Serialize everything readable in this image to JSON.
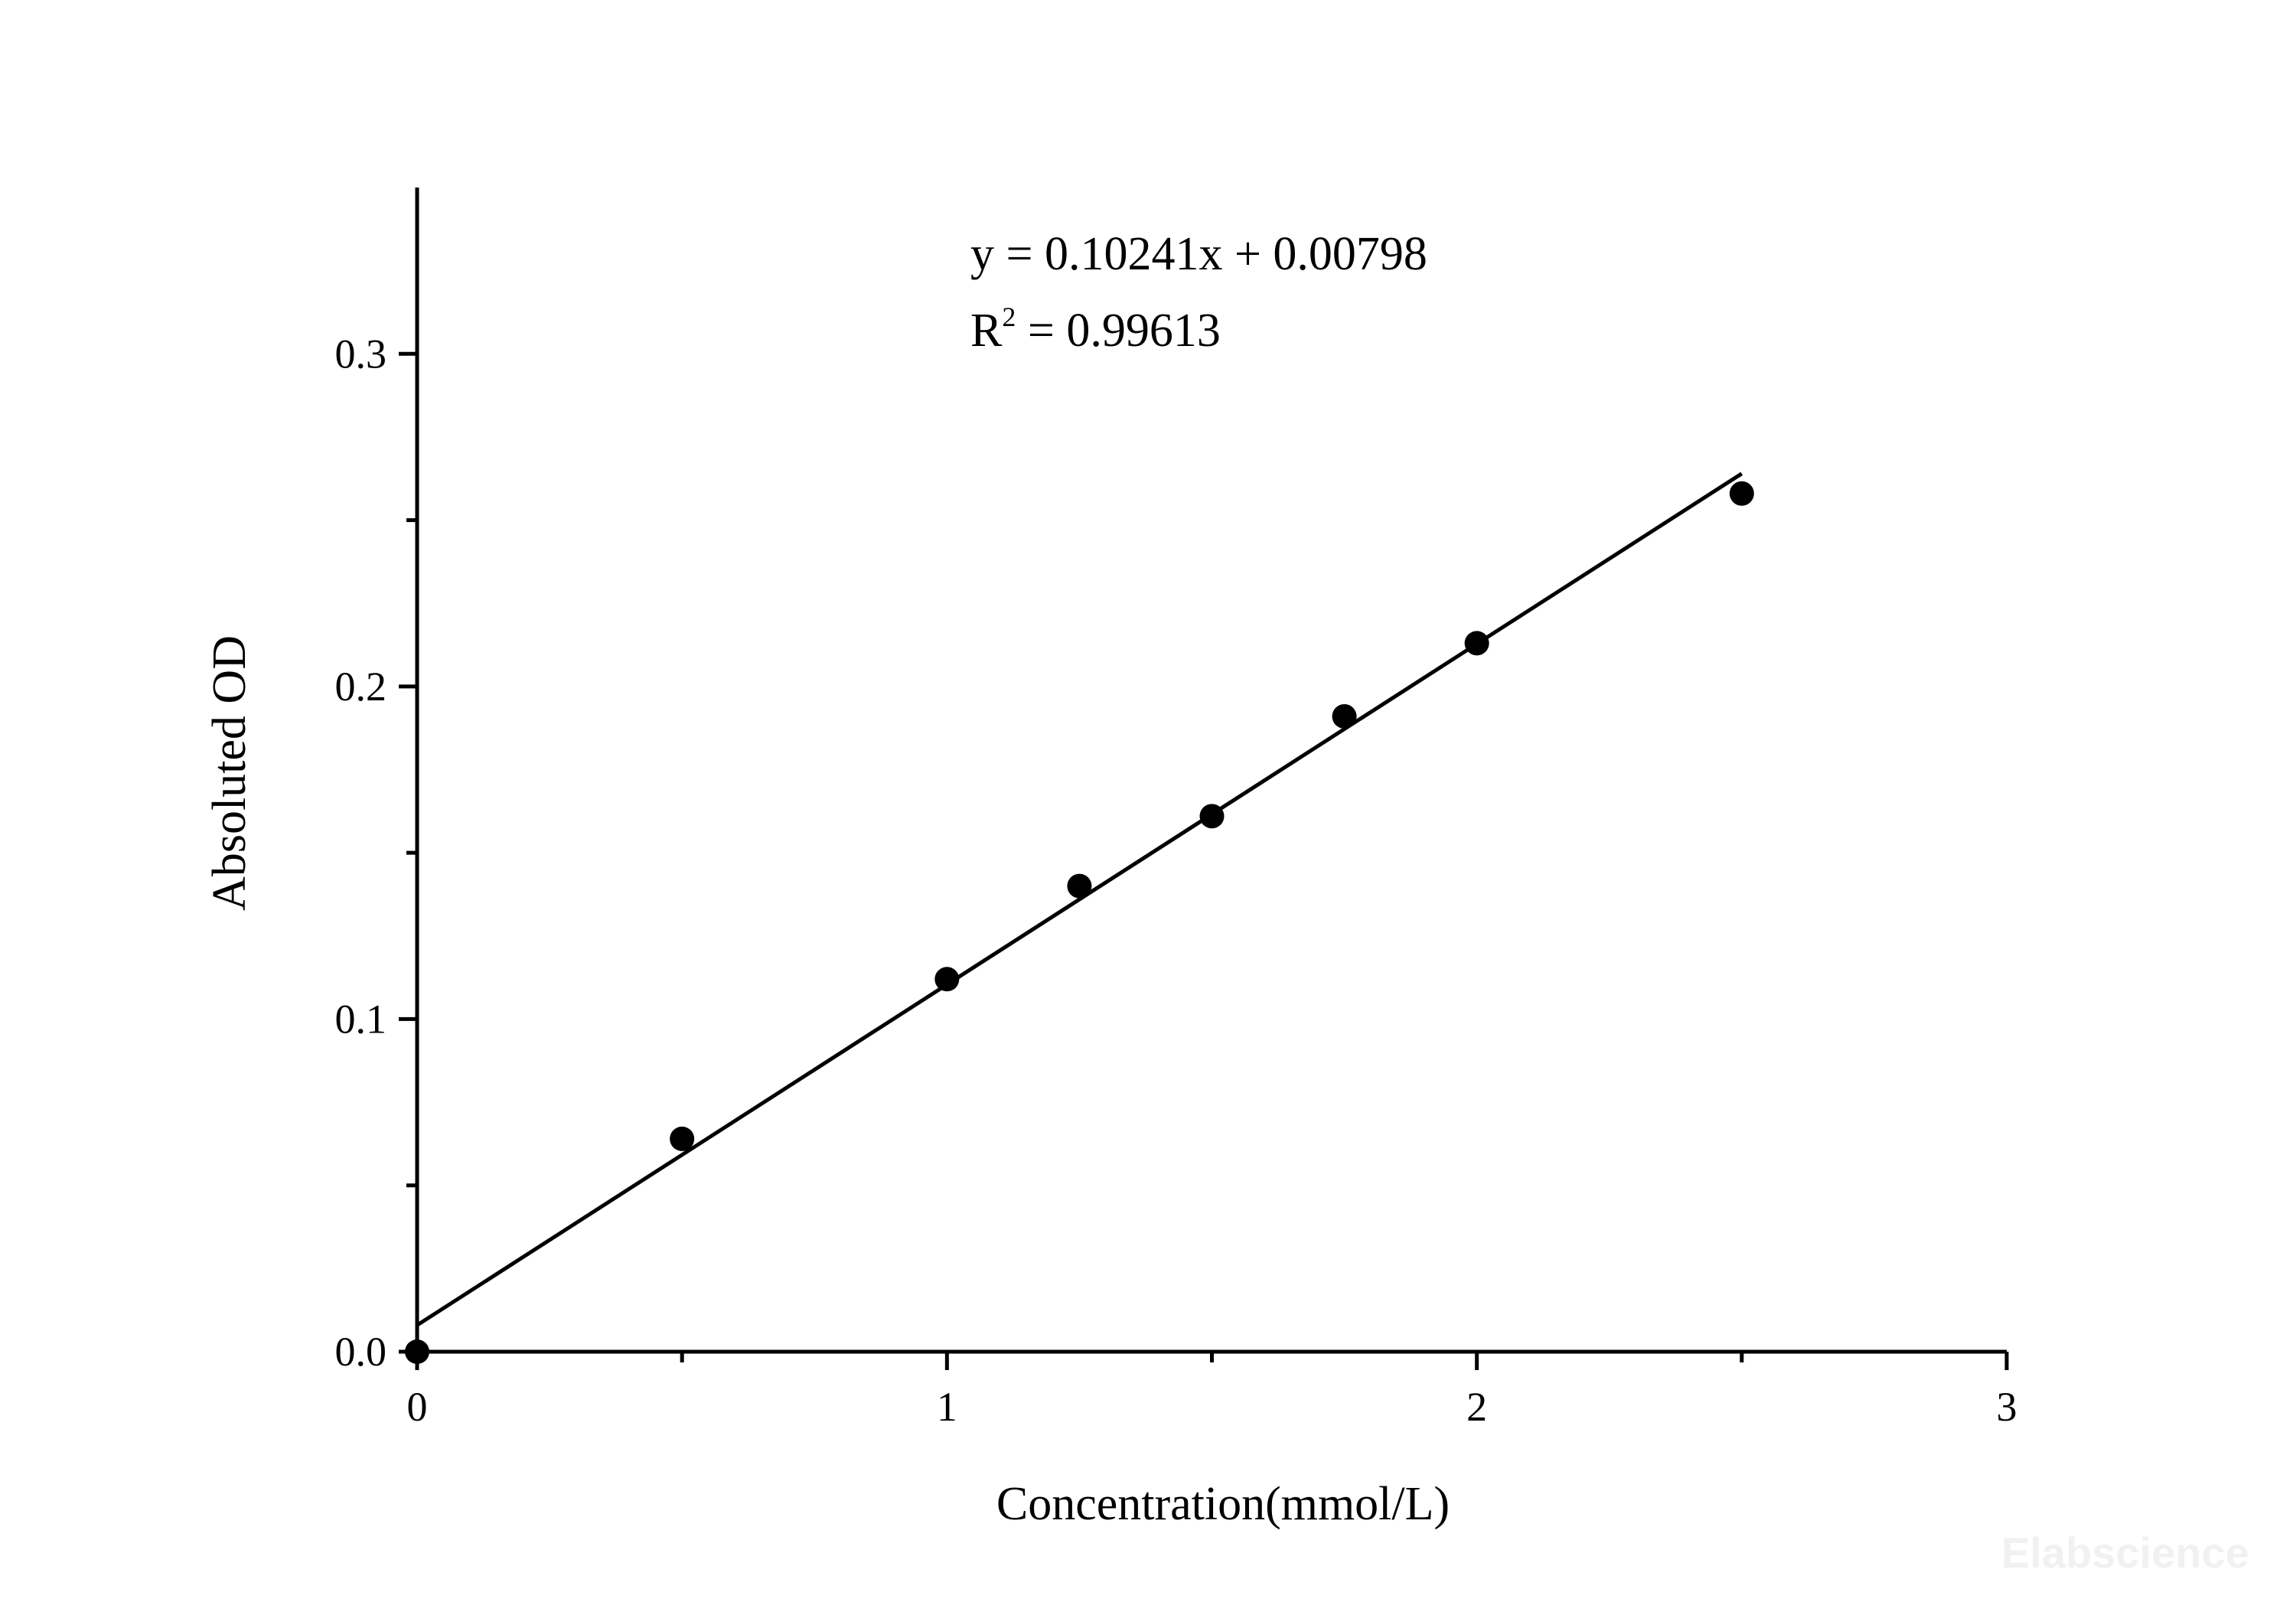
{
  "chart_data": {
    "type": "scatter",
    "xlabel": "Concentration(mmol/L)",
    "ylabel": "Absoluted OD",
    "xlim": [
      0,
      3
    ],
    "ylim": [
      0,
      0.35
    ],
    "x_ticks": [
      0,
      1,
      2,
      3
    ],
    "x_tick_labels": [
      "0",
      "1",
      "2",
      "3"
    ],
    "x_minor_ticks": [
      0.5,
      1.5,
      2.5
    ],
    "y_ticks": [
      0,
      0.1,
      0.2,
      0.3
    ],
    "y_tick_labels": [
      "0.0",
      "0.1",
      "0.2",
      "0.3"
    ],
    "y_minor_ticks": [
      0.05,
      0.15,
      0.25
    ],
    "grid": false,
    "series": [
      {
        "x": [
          0,
          0.5,
          1.0,
          1.25,
          1.5,
          1.75,
          2.0,
          2.5
        ],
        "y": [
          0.0,
          0.064,
          0.112,
          0.14,
          0.161,
          0.191,
          0.213,
          0.258
        ]
      }
    ],
    "fit": {
      "type": "linear",
      "slope": 0.10241,
      "intercept": 0.00798,
      "x_range": [
        0,
        2.5
      ],
      "equation_text": "y = 0.10241x + 0.00798",
      "r2_prefix": "R",
      "r2_sup": "2",
      "r2_value_text": " = 0.99613"
    }
  },
  "watermark": "Elabscience"
}
